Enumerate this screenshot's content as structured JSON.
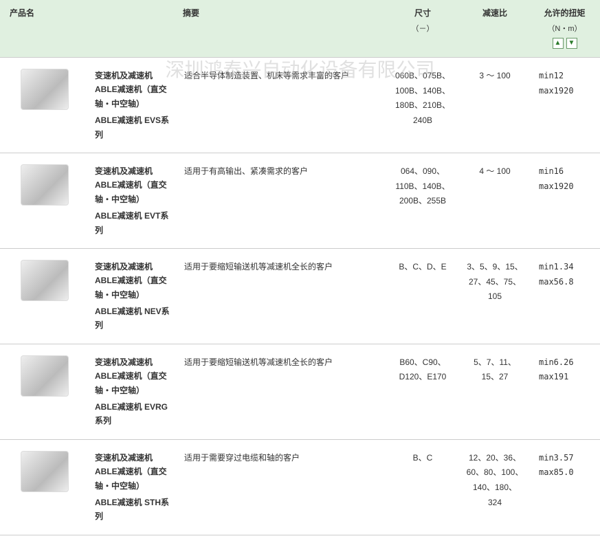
{
  "watermark": "深圳鸿泰兴自动化设备有限公司",
  "header": {
    "name": "产品名",
    "summary": "摘要",
    "size": "尺寸",
    "size_unit": "（－）",
    "ratio": "减速比",
    "torque": "允许的扭矩",
    "torque_unit": "（N・m）",
    "sort_up": "▲",
    "sort_down": "▼"
  },
  "cat_label": "变速机及减速机",
  "subcat_label": "ABLE减速机（直交轴・中空轴）",
  "rows": [
    {
      "series": "ABLE减速机 EVS系列",
      "summary": "适合半导体制造装置、机床等需求丰富的客户",
      "size": "060B、075B、100B、140B、180B、210B、240B",
      "ratio": "3 ～ 100",
      "torque_min": "min12",
      "torque_max": "max1920"
    },
    {
      "series": "ABLE减速机 EVT系列",
      "summary": "适用于有高输出、紧凑需求的客户",
      "size": "064、090、110B、140B、200B、255B",
      "ratio": "4 ～ 100",
      "torque_min": "min16",
      "torque_max": "max1920"
    },
    {
      "series": "ABLE减速机 NEV系列",
      "summary": "适用于要缩短输送机等减速机全长的客户",
      "size": "B、C、D、E",
      "ratio": "3、5、9、15、27、45、75、105",
      "torque_min": "min1.34",
      "torque_max": "max56.8"
    },
    {
      "series": "ABLE减速机 EVRG系列",
      "summary": "适用于要缩短输送机等减速机全长的客户",
      "size": "B60、C90、D120、E170",
      "ratio": "5、7、11、15、27",
      "torque_min": "min6.26",
      "torque_max": "max191"
    },
    {
      "series": "ABLE减速机 STH系列",
      "summary": "适用于需要穿过电缆和轴的客户",
      "size": "B、C",
      "ratio": "12、20、36、60、80、100、140、180、324",
      "torque_min": "min3.57",
      "torque_max": "max85.0"
    }
  ]
}
